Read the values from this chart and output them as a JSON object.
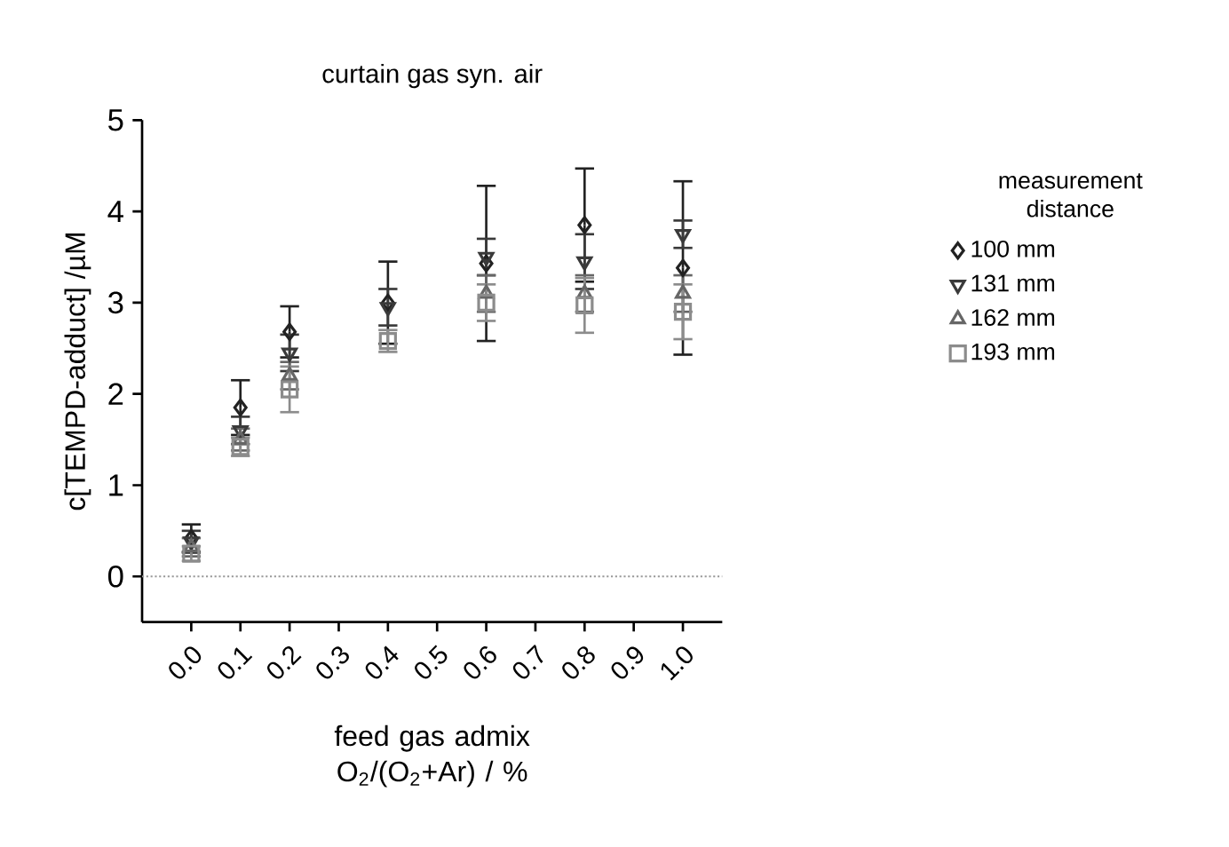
{
  "chart_data": {
    "type": "scatter",
    "title": "curtain gas syn. air",
    "xlabel": "feed gas admix O$_{2}$/(O$_{2}$+Ar) / %",
    "ylabel": "c[TEMPD-adduct] /µM",
    "legend_title": "measurement distance",
    "legend": "right",
    "x": [
      0.0,
      0.1,
      0.2,
      0.4,
      0.6,
      0.8,
      1.0
    ],
    "xlim": [
      -0.1,
      1.08
    ],
    "ylim": [
      -0.5,
      5
    ],
    "xticks": [
      {
        "value": 0.0,
        "label": "0.0"
      },
      {
        "value": 0.1,
        "label": "0.1"
      },
      {
        "value": 0.2,
        "label": "0.2"
      },
      {
        "value": 0.3,
        "label": "0.3"
      },
      {
        "value": 0.4,
        "label": "0.4"
      },
      {
        "value": 0.5,
        "label": "0.5"
      },
      {
        "value": 0.6,
        "label": "0.6"
      },
      {
        "value": 0.7,
        "label": "0.7"
      },
      {
        "value": 0.8,
        "label": "0.8"
      },
      {
        "value": 0.9,
        "label": "0.9"
      },
      {
        "value": 1.0,
        "label": "1.0"
      }
    ],
    "yticks": [
      0,
      1,
      2,
      3,
      4,
      5
    ],
    "ref_lines": [
      {
        "axis": "y",
        "value": 0,
        "color": "#999999",
        "line_style": "dotted"
      }
    ],
    "series": [
      {
        "name": "100 mm",
        "color": "#222222",
        "marker": "diamond",
        "values": [
          0.42,
          1.85,
          2.68,
          3.0,
          3.43,
          3.85,
          3.38
        ],
        "errors": [
          0.15,
          0.3,
          0.28,
          0.45,
          0.85,
          0.62,
          0.95
        ]
      },
      {
        "name": "131 mm",
        "color": "#3a3a3a",
        "marker": "triangle-down",
        "values": [
          0.38,
          1.6,
          2.45,
          2.95,
          3.5,
          3.45,
          3.75
        ],
        "errors": [
          0.12,
          0.15,
          0.2,
          0.2,
          0.2,
          0.3,
          0.15
        ]
      },
      {
        "name": "162 mm",
        "color": "#666666",
        "marker": "triangle",
        "values": [
          0.32,
          1.5,
          2.2,
          null,
          3.1,
          3.1,
          3.1
        ],
        "errors": [
          0.1,
          0.12,
          0.15,
          null,
          0.2,
          0.2,
          0.2
        ]
      },
      {
        "name": "193 mm",
        "color": "#8c8c8c",
        "marker": "square",
        "values": [
          0.25,
          1.42,
          2.05,
          2.58,
          3.0,
          2.97,
          2.9
        ],
        "errors": [
          0.08,
          0.1,
          0.25,
          0.12,
          0.2,
          0.3,
          0.3
        ]
      }
    ]
  }
}
